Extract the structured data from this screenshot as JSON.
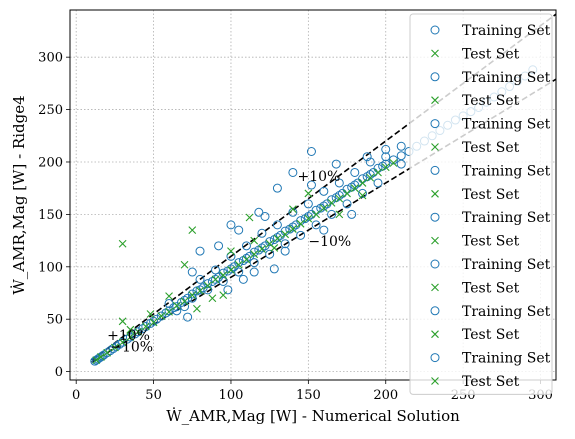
{
  "chart_data": {
    "type": "scatter",
    "xlabel": "Ẇ_AMR,Mag [W] - Numerical Solution",
    "ylabel": "Ẇ_AMR,Mag [W] - Ridge4",
    "xlim": [
      -4,
      310
    ],
    "ylim": [
      -8,
      345
    ],
    "xticks": [
      0,
      50,
      100,
      150,
      200,
      250,
      300
    ],
    "yticks": [
      0,
      50,
      100,
      150,
      200,
      250,
      300
    ],
    "grid": true,
    "legend_placement": "right",
    "reference_lines": [
      {
        "label": "+10%",
        "slope": 1.1,
        "label_x": 143,
        "label_y": 182
      },
      {
        "label": "−10%",
        "slope": 0.9,
        "label_x": 150,
        "label_y": 120
      },
      {
        "label": "+10%",
        "slope": 1.1,
        "label_x": 20,
        "label_y": 30
      },
      {
        "label": "−10%",
        "slope": 0.9,
        "label_x": 22,
        "label_y": 19
      }
    ],
    "reference_x_range": [
      10,
      310
    ],
    "series": [
      {
        "name": "Training Set",
        "marker": "circle",
        "color": "#1f77b4",
        "points": [
          [
            12,
            10
          ],
          [
            13,
            11
          ],
          [
            14,
            12
          ],
          [
            15,
            13
          ],
          [
            16,
            14
          ],
          [
            17,
            15
          ],
          [
            18,
            16
          ],
          [
            20,
            18
          ],
          [
            22,
            20
          ],
          [
            24,
            22
          ],
          [
            26,
            24
          ],
          [
            28,
            26
          ],
          [
            30,
            28
          ],
          [
            33,
            31
          ],
          [
            35,
            33
          ],
          [
            38,
            36
          ],
          [
            40,
            38
          ],
          [
            43,
            41
          ],
          [
            45,
            43
          ],
          [
            48,
            46
          ],
          [
            50,
            48
          ],
          [
            52,
            50
          ],
          [
            55,
            53
          ],
          [
            58,
            56
          ],
          [
            60,
            58
          ],
          [
            63,
            61
          ],
          [
            65,
            62
          ],
          [
            68,
            66
          ],
          [
            70,
            68
          ],
          [
            72,
            70
          ],
          [
            75,
            74
          ],
          [
            78,
            77
          ],
          [
            80,
            78
          ],
          [
            82,
            80
          ],
          [
            85,
            84
          ],
          [
            88,
            86
          ],
          [
            90,
            88
          ],
          [
            92,
            90
          ],
          [
            95,
            94
          ],
          [
            98,
            96
          ],
          [
            100,
            98
          ],
          [
            102,
            100
          ],
          [
            105,
            104
          ],
          [
            108,
            106
          ],
          [
            110,
            108
          ],
          [
            112,
            110
          ],
          [
            115,
            114
          ],
          [
            118,
            116
          ],
          [
            120,
            118
          ],
          [
            122,
            120
          ],
          [
            125,
            124
          ],
          [
            128,
            126
          ],
          [
            130,
            128
          ],
          [
            132,
            130
          ],
          [
            135,
            134
          ],
          [
            138,
            136
          ],
          [
            140,
            138
          ],
          [
            142,
            140
          ],
          [
            145,
            144
          ],
          [
            148,
            146
          ],
          [
            150,
            148
          ],
          [
            152,
            150
          ],
          [
            155,
            154
          ],
          [
            158,
            156
          ],
          [
            160,
            158
          ],
          [
            162,
            160
          ],
          [
            165,
            164
          ],
          [
            168,
            166
          ],
          [
            170,
            168
          ],
          [
            172,
            170
          ],
          [
            175,
            174
          ],
          [
            178,
            176
          ],
          [
            180,
            178
          ],
          [
            182,
            180
          ],
          [
            185,
            184
          ],
          [
            188,
            186
          ],
          [
            190,
            188
          ],
          [
            192,
            190
          ],
          [
            195,
            194
          ],
          [
            198,
            196
          ],
          [
            200,
            198
          ],
          [
            205,
            202
          ],
          [
            210,
            206
          ],
          [
            215,
            210
          ],
          [
            220,
            215
          ],
          [
            225,
            220
          ],
          [
            230,
            225
          ],
          [
            235,
            230
          ],
          [
            240,
            235
          ],
          [
            245,
            240
          ],
          [
            250,
            244
          ],
          [
            255,
            248
          ],
          [
            260,
            252
          ],
          [
            265,
            257
          ],
          [
            270,
            262
          ],
          [
            275,
            267
          ],
          [
            280,
            272
          ],
          [
            285,
            277
          ],
          [
            290,
            282
          ],
          [
            295,
            288
          ],
          [
            60,
            65
          ],
          [
            65,
            58
          ],
          [
            70,
            62
          ],
          [
            75,
            70
          ],
          [
            80,
            88
          ],
          [
            85,
            78
          ],
          [
            90,
            97
          ],
          [
            95,
            86
          ],
          [
            100,
            110
          ],
          [
            105,
            95
          ],
          [
            110,
            120
          ],
          [
            115,
            104
          ],
          [
            120,
            132
          ],
          [
            125,
            112
          ],
          [
            130,
            140
          ],
          [
            135,
            122
          ],
          [
            140,
            152
          ],
          [
            145,
            130
          ],
          [
            150,
            160
          ],
          [
            155,
            140
          ],
          [
            160,
            172
          ],
          [
            165,
            150
          ],
          [
            170,
            180
          ],
          [
            175,
            160
          ],
          [
            180,
            190
          ],
          [
            185,
            170
          ],
          [
            190,
            200
          ],
          [
            195,
            180
          ],
          [
            200,
            205
          ],
          [
            210,
            198
          ],
          [
            80,
            115
          ],
          [
            105,
            135
          ],
          [
            100,
            140
          ],
          [
            122,
            148
          ],
          [
            130,
            175
          ],
          [
            140,
            190
          ],
          [
            152,
            210
          ],
          [
            168,
            198
          ],
          [
            72,
            52
          ],
          [
            108,
            88
          ],
          [
            128,
            98
          ],
          [
            160,
            135
          ],
          [
            178,
            150
          ],
          [
            98,
            78
          ],
          [
            115,
            95
          ],
          [
            135,
            115
          ],
          [
            92,
            120
          ],
          [
            75,
            95
          ],
          [
            118,
            152
          ],
          [
            152,
            178
          ],
          [
            188,
            205
          ],
          [
            200,
            212
          ],
          [
            210,
            215
          ]
        ]
      },
      {
        "name": "Test Set",
        "marker": "x",
        "color": "#2ca02c",
        "points": [
          [
            13,
            11
          ],
          [
            16,
            14
          ],
          [
            20,
            18
          ],
          [
            25,
            23
          ],
          [
            30,
            28
          ],
          [
            35,
            33
          ],
          [
            40,
            38
          ],
          [
            45,
            43
          ],
          [
            50,
            47
          ],
          [
            55,
            53
          ],
          [
            60,
            57
          ],
          [
            65,
            63
          ],
          [
            70,
            67
          ],
          [
            75,
            73
          ],
          [
            80,
            77
          ],
          [
            85,
            82
          ],
          [
            90,
            88
          ],
          [
            95,
            92
          ],
          [
            100,
            97
          ],
          [
            105,
            102
          ],
          [
            110,
            107
          ],
          [
            115,
            112
          ],
          [
            120,
            117
          ],
          [
            125,
            122
          ],
          [
            130,
            127
          ],
          [
            135,
            131
          ],
          [
            140,
            136
          ],
          [
            145,
            141
          ],
          [
            150,
            146
          ],
          [
            155,
            150
          ],
          [
            160,
            156
          ],
          [
            165,
            161
          ],
          [
            170,
            165
          ],
          [
            175,
            170
          ],
          [
            180,
            175
          ],
          [
            185,
            180
          ],
          [
            190,
            185
          ],
          [
            195,
            190
          ],
          [
            200,
            195
          ],
          [
            205,
            199
          ],
          [
            30,
            122
          ],
          [
            75,
            135
          ],
          [
            30,
            48
          ],
          [
            70,
            102
          ],
          [
            78,
            60
          ],
          [
            112,
            147
          ],
          [
            95,
            73
          ],
          [
            140,
            155
          ],
          [
            170,
            150
          ],
          [
            115,
            125
          ],
          [
            60,
            72
          ],
          [
            88,
            70
          ],
          [
            128,
            118
          ],
          [
            150,
            170
          ],
          [
            185,
            168
          ],
          [
            100,
            115
          ],
          [
            48,
            55
          ],
          [
            35,
            40
          ]
        ]
      }
    ],
    "legend": [
      {
        "label": "Training Set",
        "marker": "circle"
      },
      {
        "label": "Test Set",
        "marker": "x"
      },
      {
        "label": "Training Set",
        "marker": "circle"
      },
      {
        "label": "Test Set",
        "marker": "x"
      },
      {
        "label": "Training Set",
        "marker": "circle"
      },
      {
        "label": "Test Set",
        "marker": "x"
      },
      {
        "label": "Training Set",
        "marker": "circle"
      },
      {
        "label": "Test Set",
        "marker": "x"
      },
      {
        "label": "Training Set",
        "marker": "circle"
      },
      {
        "label": "Test Set",
        "marker": "x"
      },
      {
        "label": "Training Set",
        "marker": "circle"
      },
      {
        "label": "Test Set",
        "marker": "x"
      },
      {
        "label": "Training Set",
        "marker": "circle"
      },
      {
        "label": "Test Set",
        "marker": "x"
      },
      {
        "label": "Training Set",
        "marker": "circle"
      },
      {
        "label": "Test Set",
        "marker": "x"
      }
    ]
  }
}
